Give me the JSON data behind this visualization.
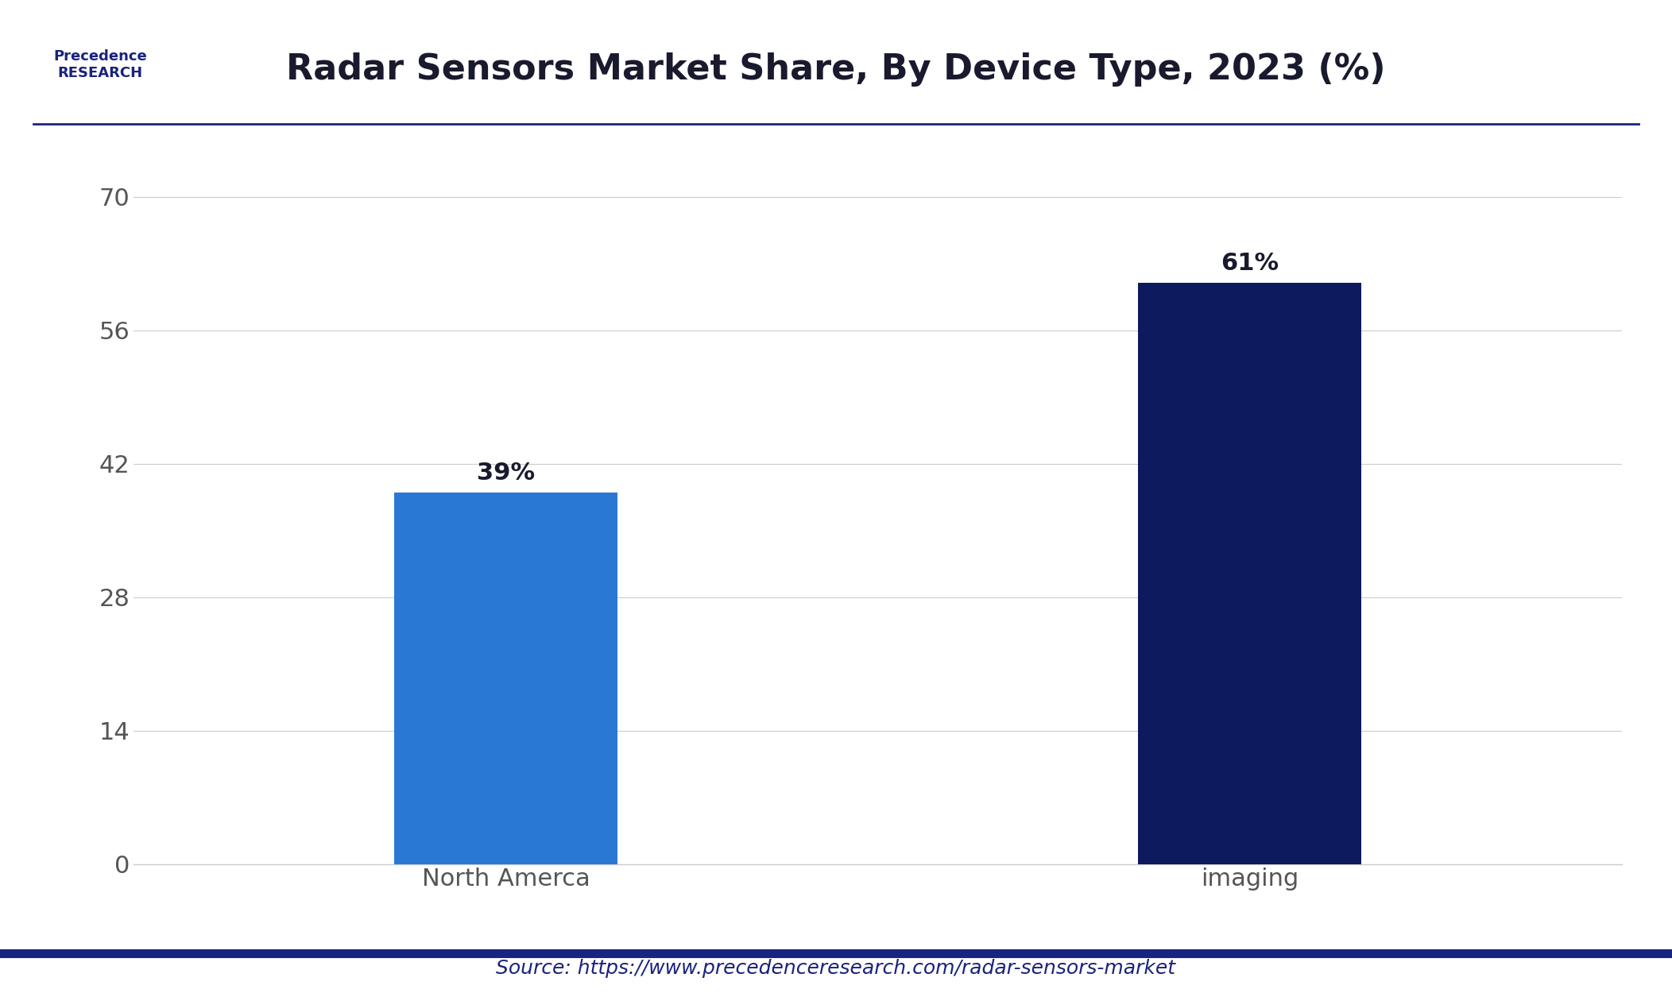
{
  "title": "Radar Sensors Market Share, By Device Type, 2023 (%)",
  "categories": [
    "North Amerca",
    "imaging"
  ],
  "values": [
    39,
    61
  ],
  "bar_colors": [
    "#2979d4",
    "#0d1a5e"
  ],
  "label_texts": [
    "39%",
    "61%"
  ],
  "yticks": [
    0,
    14,
    28,
    42,
    56,
    70
  ],
  "ylim": [
    0,
    75
  ],
  "source_text": "Source: https://www.precedenceresearch.com/radar-sensors-market",
  "source_color": "#1a237e",
  "title_color": "#1a1a2e",
  "background_color": "#ffffff",
  "grid_color": "#cccccc",
  "axis_color": "#555555",
  "label_fontsize": 22,
  "title_fontsize": 32,
  "tick_fontsize": 22,
  "source_fontsize": 18,
  "bar_width": 0.15,
  "top_border_color": "#1a237e",
  "bottom_border_color": "#1a237e",
  "logo_text": "Precedence\nRESEARCH",
  "logo_color": "#1a237e",
  "logo_fontsize": 13
}
